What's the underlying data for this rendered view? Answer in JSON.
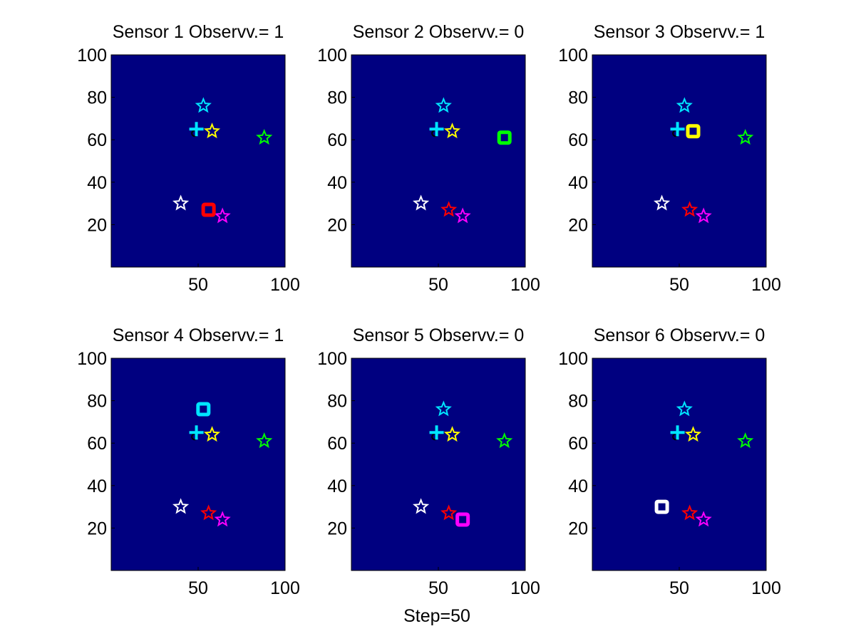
{
  "figure": {
    "xlabel": "Step=50"
  },
  "chart_data": [
    {
      "type": "scatter",
      "title": "Sensor 1 Observv.= 1",
      "xlim": [
        0,
        100
      ],
      "ylim": [
        0,
        100
      ],
      "xticks": [
        50,
        100
      ],
      "yticks": [
        20,
        40,
        60,
        80,
        100
      ],
      "background": "#000080",
      "sensor": {
        "x": 56,
        "y": 27,
        "color": "#ff0000"
      }
    },
    {
      "type": "scatter",
      "title": "Sensor 2 Observv.= 0",
      "xlim": [
        0,
        100
      ],
      "ylim": [
        0,
        100
      ],
      "xticks": [
        50,
        100
      ],
      "yticks": [
        20,
        40,
        60,
        80,
        100
      ],
      "background": "#000080",
      "sensor": {
        "x": 88,
        "y": 61,
        "color": "#00ff00"
      }
    },
    {
      "type": "scatter",
      "title": "Sensor 3 Observv.= 1",
      "xlim": [
        0,
        100
      ],
      "ylim": [
        0,
        100
      ],
      "xticks": [
        50,
        100
      ],
      "yticks": [
        20,
        40,
        60,
        80,
        100
      ],
      "background": "#000080",
      "sensor": {
        "x": 58,
        "y": 64,
        "color": "#ffff00"
      }
    },
    {
      "type": "scatter",
      "title": "Sensor 4 Observv.= 1",
      "xlim": [
        0,
        100
      ],
      "ylim": [
        0,
        100
      ],
      "xticks": [
        50,
        100
      ],
      "yticks": [
        20,
        40,
        60,
        80,
        100
      ],
      "background": "#000080",
      "sensor": {
        "x": 53,
        "y": 76,
        "color": "#00e5ff"
      }
    },
    {
      "type": "scatter",
      "title": "Sensor 5 Observv.= 0",
      "xlim": [
        0,
        100
      ],
      "ylim": [
        0,
        100
      ],
      "xticks": [
        50,
        100
      ],
      "yticks": [
        20,
        40,
        60,
        80,
        100
      ],
      "background": "#000080",
      "sensor": {
        "x": 64,
        "y": 24,
        "color": "#ff00ff"
      }
    },
    {
      "type": "scatter",
      "title": "Sensor 6 Observv.= 0",
      "xlim": [
        0,
        100
      ],
      "ylim": [
        0,
        100
      ],
      "xticks": [
        50,
        100
      ],
      "yticks": [
        20,
        40,
        60,
        80,
        100
      ],
      "background": "#000080",
      "sensor": {
        "x": 40,
        "y": 30,
        "color": "#ffffff"
      }
    }
  ],
  "common": {
    "stars": [
      {
        "name": "cyan",
        "x": 53,
        "y": 76,
        "color": "#00e5ff"
      },
      {
        "name": "yellow",
        "x": 58,
        "y": 64,
        "color": "#ffff00"
      },
      {
        "name": "green",
        "x": 88,
        "y": 61,
        "color": "#00ff00"
      },
      {
        "name": "white",
        "x": 40,
        "y": 30,
        "color": "#ffffff"
      },
      {
        "name": "red",
        "x": 56,
        "y": 27,
        "color": "#ff0000"
      },
      {
        "name": "magenta",
        "x": 64,
        "y": 24,
        "color": "#ff00ff"
      }
    ],
    "target": {
      "x": 49,
      "y": 65,
      "color": "#00e5ff"
    },
    "black_marker": {
      "x": 48,
      "y": 63,
      "color": "#000000"
    }
  }
}
